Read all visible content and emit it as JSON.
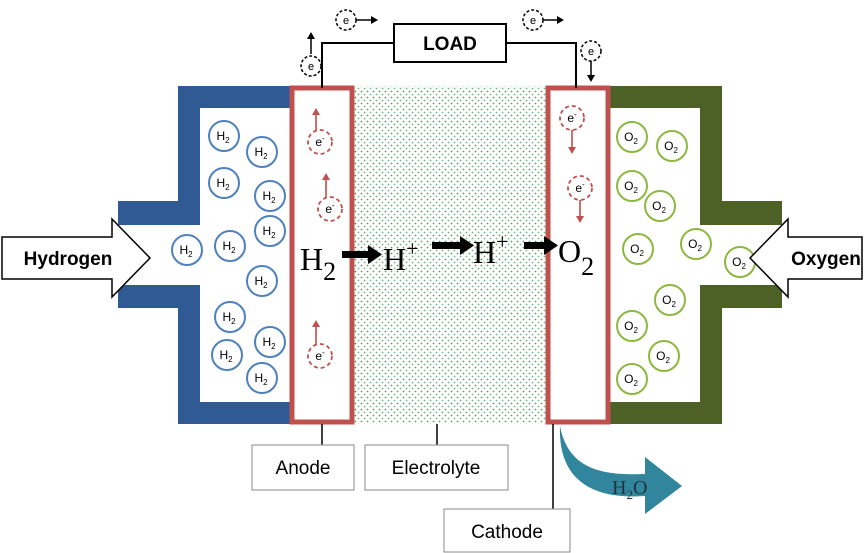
{
  "load": {
    "label": "LOAD"
  },
  "inlets": {
    "hydrogen": "Hydrogen",
    "oxygen": "Oxygen"
  },
  "labels": {
    "anode": "Anode",
    "electrolyte": "Electrolyte",
    "cathode": "Cathode"
  },
  "reaction": {
    "h2": "H",
    "h2_sub": "2",
    "h_plus": "H",
    "h_plus_sup": "+",
    "h_plus2": "H",
    "h_plus2_sup": "+",
    "o2": "O",
    "o2_sub": "2"
  },
  "water": {
    "text": "H",
    "sub": "2",
    "tail": "O"
  },
  "molecules": {
    "hydrogen": "H",
    "hydrogen_sub": "2",
    "oxygen": "O",
    "oxygen_sub": "2"
  },
  "electron": {
    "text": "e",
    "sup": "-"
  },
  "colors": {
    "anode_housing": "#2f5a93",
    "cathode_housing": "#4d6025",
    "electrode_border": "#c0504d",
    "electrolyte_dots": "#3b8a4a",
    "hydrogen_molecule": "#4f81bd",
    "oxygen_molecule": "#8db83f",
    "water_arrow": "#31859c"
  },
  "icons": {
    "inlet_arrow": "hollow-arrow-icon",
    "electron": "electron-circle-icon"
  }
}
